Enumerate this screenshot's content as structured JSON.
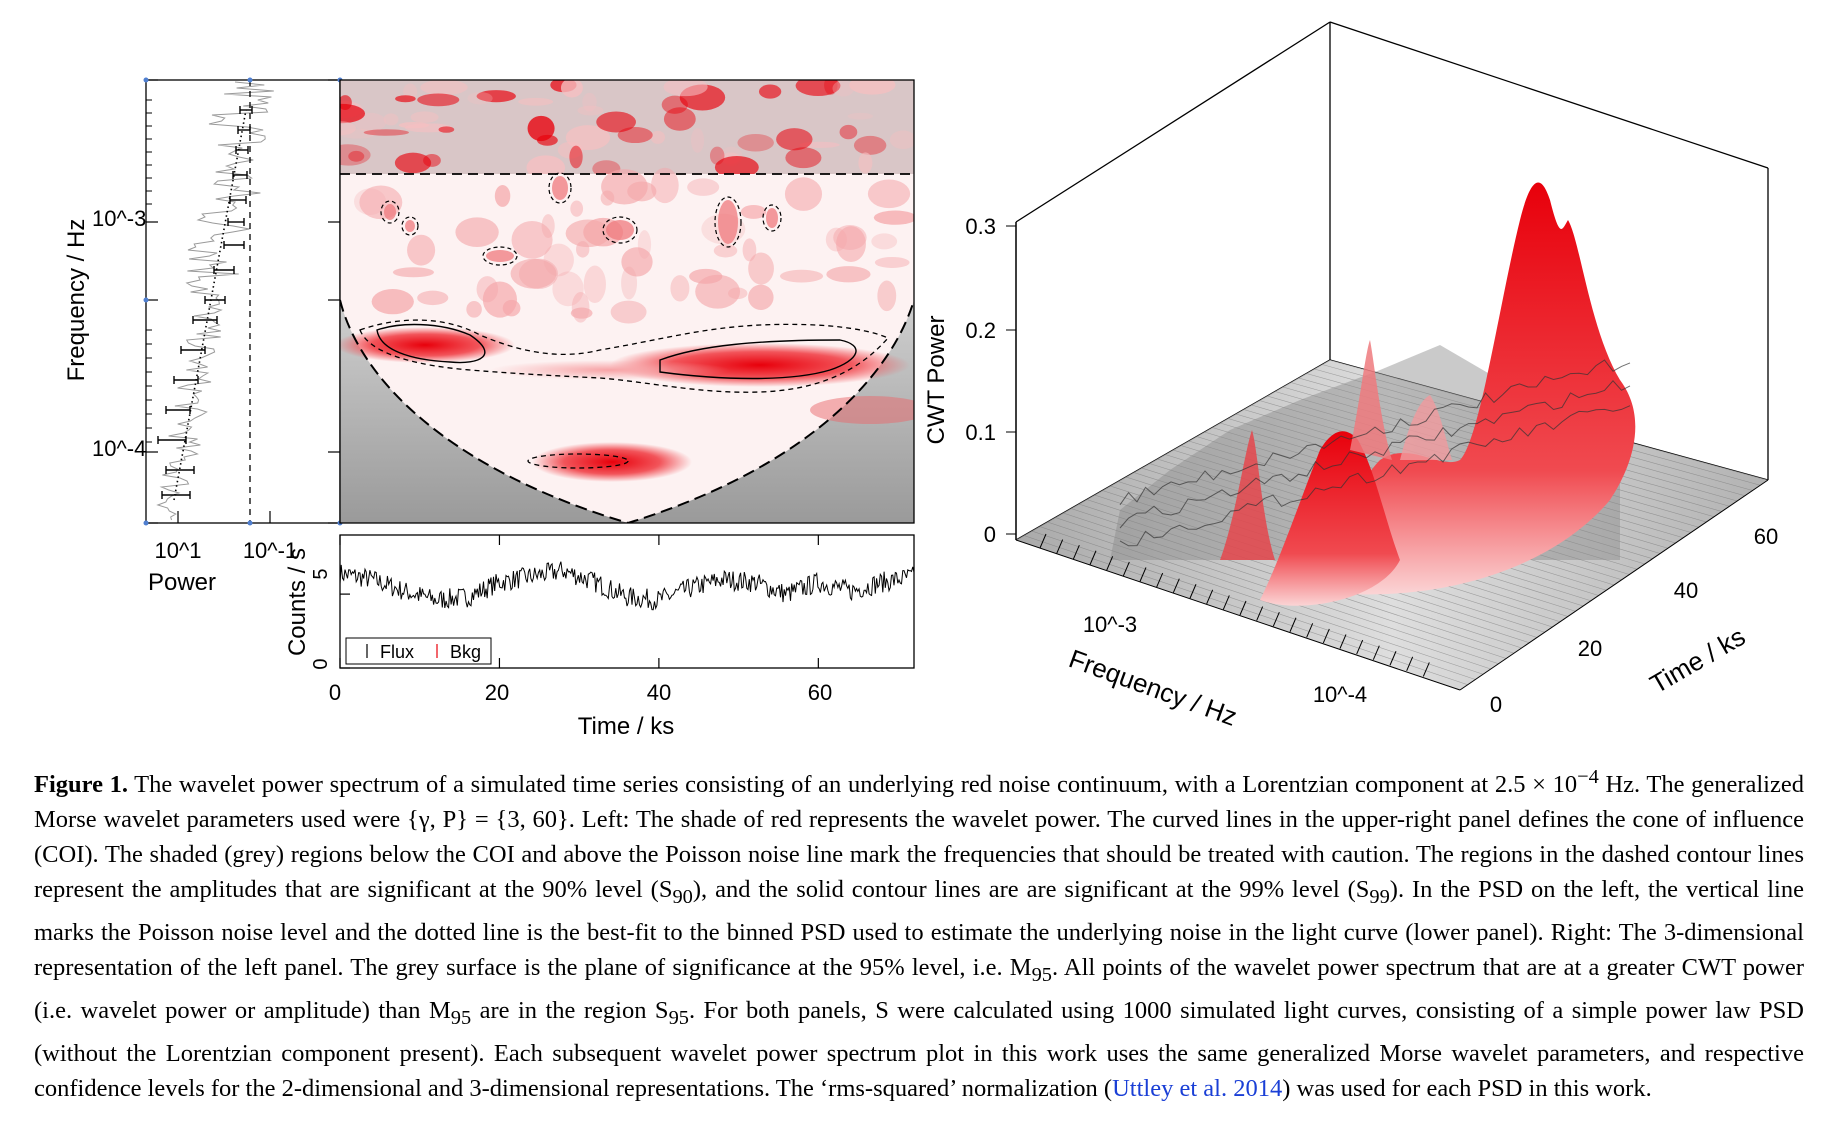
{
  "figure": {
    "left": {
      "psd": {
        "ylabel": "Frequency / Hz",
        "xlabel": "Power",
        "y_ticks": [
          "10^-3",
          "10^-4"
        ],
        "x_ticks": [
          "10^1",
          "10^-1"
        ]
      },
      "wavelet": {
        "description_colors": {
          "high_power": "#e8000b",
          "low_power": "#ffffff",
          "caution_region": "#9c9c9c"
        }
      },
      "lightcurve": {
        "ylabel": "Counts / s",
        "xlabel": "Time / ks",
        "y_ticks": [
          "0",
          "5"
        ],
        "x_ticks": [
          "0",
          "20",
          "40",
          "60"
        ],
        "legend": [
          "Flux",
          "Bkg"
        ]
      }
    },
    "right": {
      "zlabel": "CWT Power",
      "z_ticks": [
        "0",
        "0.1",
        "0.2",
        "0.3"
      ],
      "freq_label": "Frequency / Hz",
      "freq_ticks": [
        "10^-3",
        "10^-4"
      ],
      "time_label": "Time / ks",
      "time_ticks": [
        "0",
        "20",
        "40",
        "60"
      ]
    }
  },
  "chart_data": [
    {
      "type": "line",
      "panel": "light-curve",
      "xlabel": "Time / ks",
      "ylabel": "Counts / s",
      "xlim": [
        0,
        72
      ],
      "ylim": [
        0,
        9
      ],
      "series": [
        {
          "name": "Flux",
          "x": [
            0,
            4,
            8,
            12,
            16,
            20,
            24,
            28,
            32,
            36,
            40,
            44,
            48,
            52,
            56,
            60,
            64,
            68,
            72
          ],
          "values": [
            6.4,
            6.0,
            5.2,
            4.6,
            4.8,
            5.8,
            6.2,
            6.6,
            5.8,
            4.8,
            4.6,
            5.4,
            6.0,
            5.8,
            5.0,
            5.8,
            5.2,
            5.8,
            6.2
          ]
        },
        {
          "name": "Bkg",
          "x": [
            0,
            72
          ],
          "values": [
            0.1,
            0.1
          ]
        }
      ]
    },
    {
      "type": "heatmap",
      "panel": "wavelet-power-3d",
      "zlabel": "CWT Power",
      "zlim": [
        0,
        0.3
      ],
      "peaks": [
        {
          "time_ks": 60,
          "frequency_hz": 0.00025,
          "cwt_power": 0.29
        },
        {
          "time_ks": 25,
          "frequency_hz": 0.00025,
          "cwt_power": 0.12
        }
      ]
    }
  ],
  "caption": {
    "label": "Figure 1.",
    "text_1": " The wavelet power spectrum of a simulated time series consisting of an underlying red noise continuum, with a Lorentzian component at 2.5 × 10",
    "sup_1": "−4",
    "text_2": " Hz. The generalized Morse wavelet parameters used were {γ, P} = {3, 60}. Left: The shade of red represents the wavelet power. The curved lines in the upper-right panel defines the cone of influence (COI). The shaded (grey) regions below the COI and above the Poisson noise line mark the frequencies that should be treated with caution. The regions in the dashed contour lines represent the amplitudes that are significant at the 90% level (S",
    "sub_90": "90",
    "text_3": "), and the solid contour lines are are significant at the 99% level (S",
    "sub_99": "99",
    "text_4": "). In the PSD on the left, the vertical line marks the Poisson noise level and the dotted line is the best-fit to the binned PSD used to estimate the underlying noise in the light curve (lower panel). Right: The 3-dimensional representation of the left panel. The grey surface is the plane of significance at the 95% level, i.e. M",
    "sub_m95a": "95",
    "text_5": ". All points of the wavelet power spectrum that are at a greater CWT power (i.e. wavelet power or amplitude) than M",
    "sub_m95b": "95",
    "text_6": " are in the region S",
    "sub_95": "95",
    "text_7": ". For both panels, S were calculated using 1000 simulated light curves, consisting of a simple power law PSD (without the Lorentzian component present). Each subsequent wavelet power spectrum plot in this work uses the same generalized Morse wavelet parameters, and respective confidence levels for the 2-dimensional and 3-dimensional representations. The ‘rms-squared’ normalization (",
    "cite": "Uttley et al. 2014",
    "text_8": ") was used for each PSD in this work."
  }
}
